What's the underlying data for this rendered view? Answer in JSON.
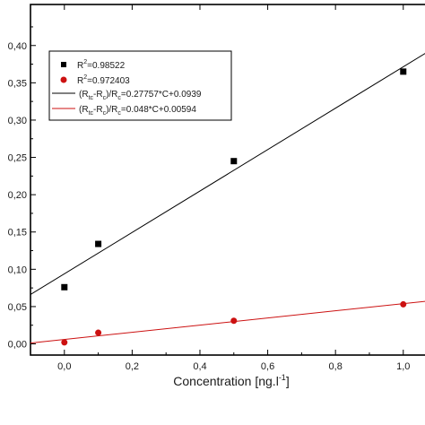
{
  "chart_data": {
    "type": "scatter",
    "title": "",
    "xlabel": "Concentration [ng.l",
    "xlabel_sup": "-1",
    "xlabel_tail": "]",
    "ylabel": "",
    "xlim": [
      -0.1,
      1.08
    ],
    "ylim": [
      -0.015,
      0.455
    ],
    "grid": false,
    "x_ticks": [
      {
        "value": 0.0,
        "label": "0,0"
      },
      {
        "value": 0.2,
        "label": "0,2"
      },
      {
        "value": 0.4,
        "label": "0,4"
      },
      {
        "value": 0.6,
        "label": "0,6"
      },
      {
        "value": 0.8,
        "label": "0,8"
      },
      {
        "value": 1.0,
        "label": "1,0"
      }
    ],
    "y_ticks": [
      {
        "value": 0.0,
        "label": "0,00"
      },
      {
        "value": 0.05,
        "label": "0,05"
      },
      {
        "value": 0.1,
        "label": "0,10"
      },
      {
        "value": 0.15,
        "label": "0,15"
      },
      {
        "value": 0.2,
        "label": "0,20"
      },
      {
        "value": 0.25,
        "label": "0,25"
      },
      {
        "value": 0.3,
        "label": "0,30"
      },
      {
        "value": 0.35,
        "label": "0,35"
      },
      {
        "value": 0.4,
        "label": "0,40"
      }
    ],
    "series": [
      {
        "color": "#000000",
        "marker": "square",
        "x": [
          0.0,
          0.1,
          0.5,
          1.0
        ],
        "y": [
          0.076,
          0.134,
          0.245,
          0.365
        ],
        "fit": {
          "slope": 0.27757,
          "intercept": 0.0939,
          "color": "#000000"
        }
      },
      {
        "color": "#cc1111",
        "marker": "circle",
        "x": [
          0.0,
          0.1,
          0.5,
          1.0
        ],
        "y": [
          0.002,
          0.015,
          0.031,
          0.053
        ],
        "fit": {
          "slope": 0.048,
          "intercept": 0.00594,
          "color": "#cc1111"
        }
      }
    ],
    "legend": {
      "placement": "top-left",
      "entries": [
        {
          "kind": "marker",
          "marker": "square",
          "color": "#000000",
          "text": "R",
          "sup": "2",
          "tail": "=0.98522"
        },
        {
          "kind": "marker",
          "marker": "circle",
          "color": "#cc1111",
          "text": "R",
          "sup": "2",
          "tail": "=0.972403"
        },
        {
          "kind": "line",
          "color": "#000000",
          "text": "(R",
          "sub1": "tc",
          "mid1": "-R",
          "sub2": "c",
          "mid2": ")/R",
          "sub3": "c",
          "tail": "=0.27757*C+0.0939"
        },
        {
          "kind": "line",
          "color": "#cc1111",
          "text": "(R",
          "sub1": "tc",
          "mid1": "-R",
          "sub2": "c",
          "mid2": ")/R",
          "sub3": "c",
          "tail": "=0.048*C+0.00594"
        }
      ]
    }
  }
}
